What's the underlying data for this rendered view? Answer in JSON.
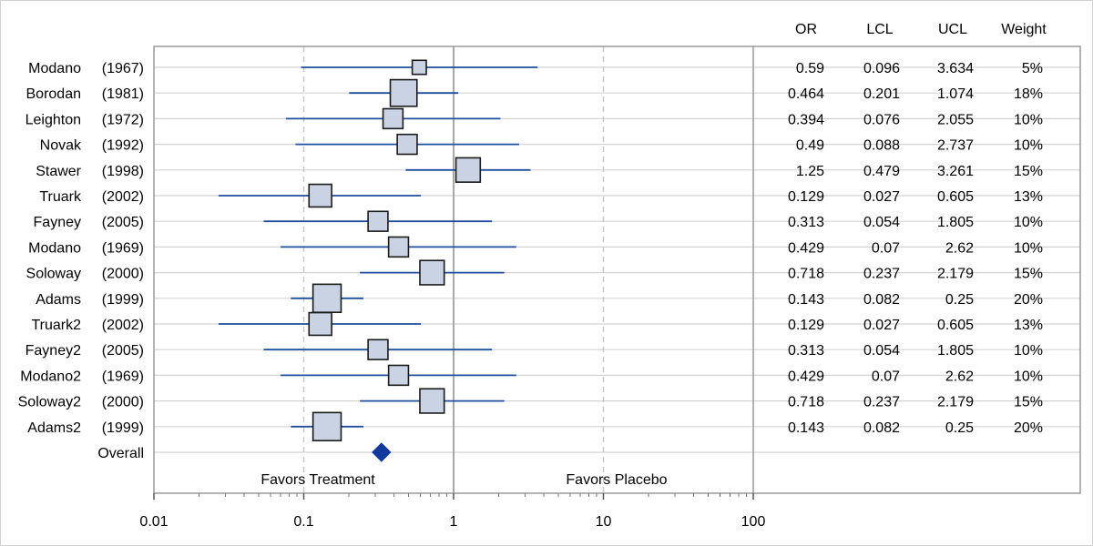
{
  "chart_data": {
    "type": "forest",
    "x_axis": {
      "scale": "log",
      "range": [
        0.01,
        100
      ],
      "tick_labels": [
        "0.01",
        "0.1",
        "1",
        "10",
        "100"
      ],
      "minor_ticks": true
    },
    "reference_lines": {
      "solid": [
        1
      ],
      "dashed": [
        0.1,
        10
      ]
    },
    "annotations": {
      "left": "Favors Treatment",
      "right": "Favors Placebo"
    },
    "table_headers": [
      "OR",
      "LCL",
      "UCL",
      "Weight"
    ],
    "studies": [
      {
        "name": "Modano",
        "year": "(1967)",
        "or": 0.59,
        "lcl": 0.096,
        "ucl": 3.634,
        "weight": 5,
        "or_text": "0.59",
        "lcl_text": "0.096",
        "ucl_text": "3.634",
        "weight_text": "5%"
      },
      {
        "name": "Borodan",
        "year": "(1981)",
        "or": 0.464,
        "lcl": 0.201,
        "ucl": 1.074,
        "weight": 18,
        "or_text": "0.464",
        "lcl_text": "0.201",
        "ucl_text": "1.074",
        "weight_text": "18%"
      },
      {
        "name": "Leighton",
        "year": "(1972)",
        "or": 0.394,
        "lcl": 0.076,
        "ucl": 2.055,
        "weight": 10,
        "or_text": "0.394",
        "lcl_text": "0.076",
        "ucl_text": "2.055",
        "weight_text": "10%"
      },
      {
        "name": "Novak",
        "year": "(1992)",
        "or": 0.49,
        "lcl": 0.088,
        "ucl": 2.737,
        "weight": 10,
        "or_text": "0.49",
        "lcl_text": "0.088",
        "ucl_text": "2.737",
        "weight_text": "10%"
      },
      {
        "name": "Stawer",
        "year": "(1998)",
        "or": 1.25,
        "lcl": 0.479,
        "ucl": 3.261,
        "weight": 15,
        "or_text": "1.25",
        "lcl_text": "0.479",
        "ucl_text": "3.261",
        "weight_text": "15%"
      },
      {
        "name": "Truark",
        "year": "(2002)",
        "or": 0.129,
        "lcl": 0.027,
        "ucl": 0.605,
        "weight": 13,
        "or_text": "0.129",
        "lcl_text": "0.027",
        "ucl_text": "0.605",
        "weight_text": "13%"
      },
      {
        "name": "Fayney",
        "year": "(2005)",
        "or": 0.313,
        "lcl": 0.054,
        "ucl": 1.805,
        "weight": 10,
        "or_text": "0.313",
        "lcl_text": "0.054",
        "ucl_text": "1.805",
        "weight_text": "10%"
      },
      {
        "name": "Modano",
        "year": "(1969)",
        "or": 0.429,
        "lcl": 0.07,
        "ucl": 2.62,
        "weight": 10,
        "or_text": "0.429",
        "lcl_text": "0.07",
        "ucl_text": "2.62",
        "weight_text": "10%"
      },
      {
        "name": "Soloway",
        "year": "(2000)",
        "or": 0.718,
        "lcl": 0.237,
        "ucl": 2.179,
        "weight": 15,
        "or_text": "0.718",
        "lcl_text": "0.237",
        "ucl_text": "2.179",
        "weight_text": "15%"
      },
      {
        "name": "Adams",
        "year": "(1999)",
        "or": 0.143,
        "lcl": 0.082,
        "ucl": 0.25,
        "weight": 20,
        "or_text": "0.143",
        "lcl_text": "0.082",
        "ucl_text": "0.25",
        "weight_text": "20%"
      },
      {
        "name": "Truark2",
        "year": "(2002)",
        "or": 0.129,
        "lcl": 0.027,
        "ucl": 0.605,
        "weight": 13,
        "or_text": "0.129",
        "lcl_text": "0.027",
        "ucl_text": "0.605",
        "weight_text": "13%"
      },
      {
        "name": "Fayney2",
        "year": "(2005)",
        "or": 0.313,
        "lcl": 0.054,
        "ucl": 1.805,
        "weight": 10,
        "or_text": "0.313",
        "lcl_text": "0.054",
        "ucl_text": "1.805",
        "weight_text": "10%"
      },
      {
        "name": "Modano2",
        "year": "(1969)",
        "or": 0.429,
        "lcl": 0.07,
        "ucl": 2.62,
        "weight": 10,
        "or_text": "0.429",
        "lcl_text": "0.07",
        "ucl_text": "2.62",
        "weight_text": "10%"
      },
      {
        "name": "Soloway2",
        "year": "(2000)",
        "or": 0.718,
        "lcl": 0.237,
        "ucl": 2.179,
        "weight": 15,
        "or_text": "0.718",
        "lcl_text": "0.237",
        "ucl_text": "2.179",
        "weight_text": "15%"
      },
      {
        "name": "Adams2",
        "year": "(1999)",
        "or": 0.143,
        "lcl": 0.082,
        "ucl": 0.25,
        "weight": 20,
        "or_text": "0.143",
        "lcl_text": "0.082",
        "ucl_text": "0.25",
        "weight_text": "20%"
      }
    ],
    "overall": {
      "label": "Overall",
      "or": 0.33
    },
    "colors": {
      "ci_line": "#1f4e9c",
      "box_fill": "#c9d3e3",
      "box_stroke": "#1a1a1a",
      "overall_marker": "#123a9c",
      "row_grid": "#d3d3d3",
      "ref_line": "#a8a8a8",
      "dash_line": "#c8c8c8",
      "axis": "#9a9a9a"
    }
  }
}
